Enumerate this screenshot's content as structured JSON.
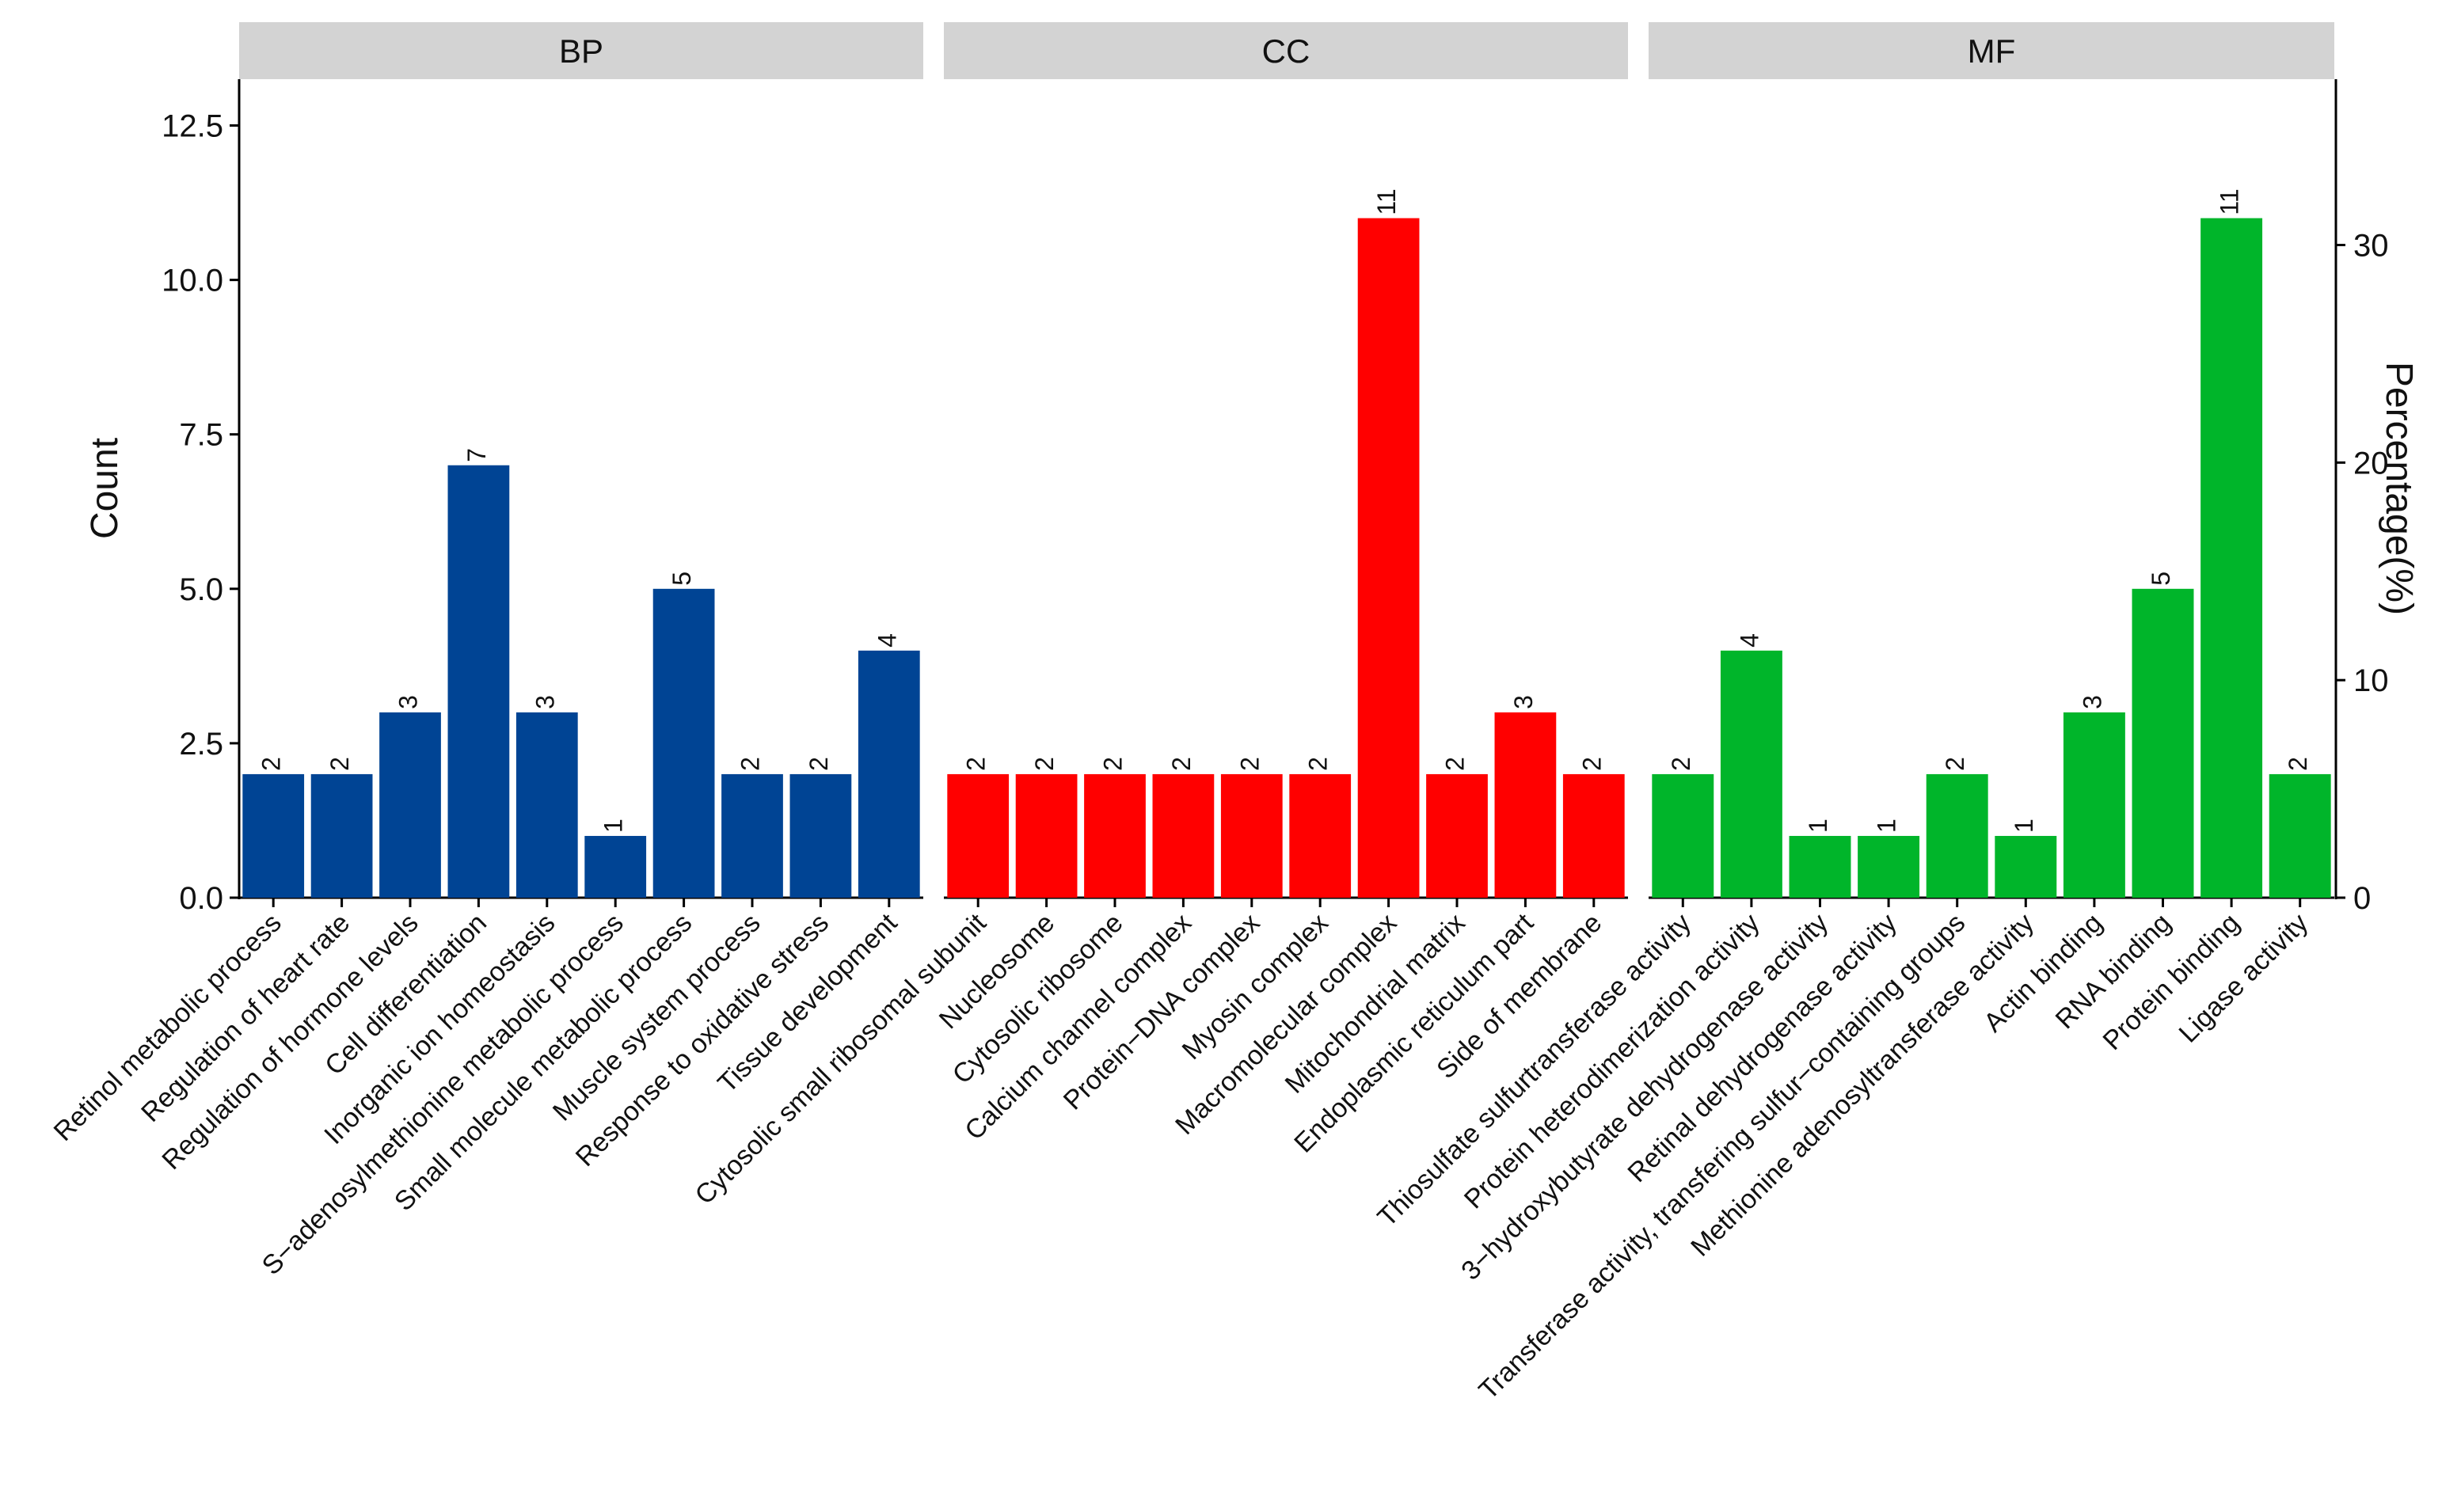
{
  "chart_data": {
    "type": "bar",
    "ylabel": "Count",
    "y2label": "Percentage(%)",
    "ylim": [
      0,
      13.25
    ],
    "yticks": [
      "0.0",
      "2.5",
      "5.0",
      "7.5",
      "10.0",
      "12.5"
    ],
    "ytick_values": [
      0,
      2.5,
      5,
      7.5,
      10,
      12.5
    ],
    "y2ticks": [
      "0",
      "10",
      "20",
      "30"
    ],
    "y2tick_values": [
      0,
      10,
      20,
      30
    ],
    "y2_per_count": 2.8395,
    "grid": false,
    "legend": "none",
    "panels": [
      {
        "name": "BP",
        "color": "#004494",
        "categories": [
          "Retinol metabolic process",
          "Regulation of heart rate",
          "Regulation of hormone levels",
          "Cell differentiation",
          "Inorganic ion homeostasis",
          "S−adenosylmethionine metabolic process",
          "Small molecule metabolic process",
          "Muscle system process",
          "Response to oxidative stress",
          "Tissue development"
        ],
        "values": [
          2,
          2,
          3,
          7,
          3,
          1,
          5,
          2,
          2,
          4
        ],
        "labels": [
          "2",
          "2",
          "3",
          "7",
          "3",
          "1",
          "5",
          "2",
          "2",
          "4"
        ]
      },
      {
        "name": "CC",
        "color": "#FF0000",
        "categories": [
          "Cytosolic small ribosomal subunit",
          "Nucleosome",
          "Cytosolic ribosome",
          "Calcium channel complex",
          "Protein−DNA complex",
          "Myosin complex",
          "Macromolecular complex",
          "Mitochondrial matrix",
          "Endoplasmic reticulum part",
          "Side of membrane"
        ],
        "values": [
          2,
          2,
          2,
          2,
          2,
          2,
          11,
          2,
          3,
          2
        ],
        "labels": [
          "2",
          "2",
          "2",
          "2",
          "2",
          "2",
          "11",
          "2",
          "3",
          "2"
        ]
      },
      {
        "name": "MF",
        "color": "#00B52A",
        "categories": [
          "Thiosulfate sulfurtransferase activity",
          "Protein heterodimerization activity",
          "3−hydroxybutyrate dehydrogenase activity",
          "Retinal dehydrogenase activity",
          "Transferase activity, transfering sulfur−containing groups",
          "Methionine adenosyltransferase activity",
          "Actin binding",
          "RNA binding",
          "Protein binding",
          "Ligase activity"
        ],
        "values": [
          2,
          4,
          1,
          1,
          2,
          1,
          3,
          5,
          11,
          2
        ],
        "labels": [
          "2",
          "4",
          "1",
          "1",
          "2",
          "1",
          "3",
          "5",
          "11",
          "2"
        ]
      }
    ]
  }
}
